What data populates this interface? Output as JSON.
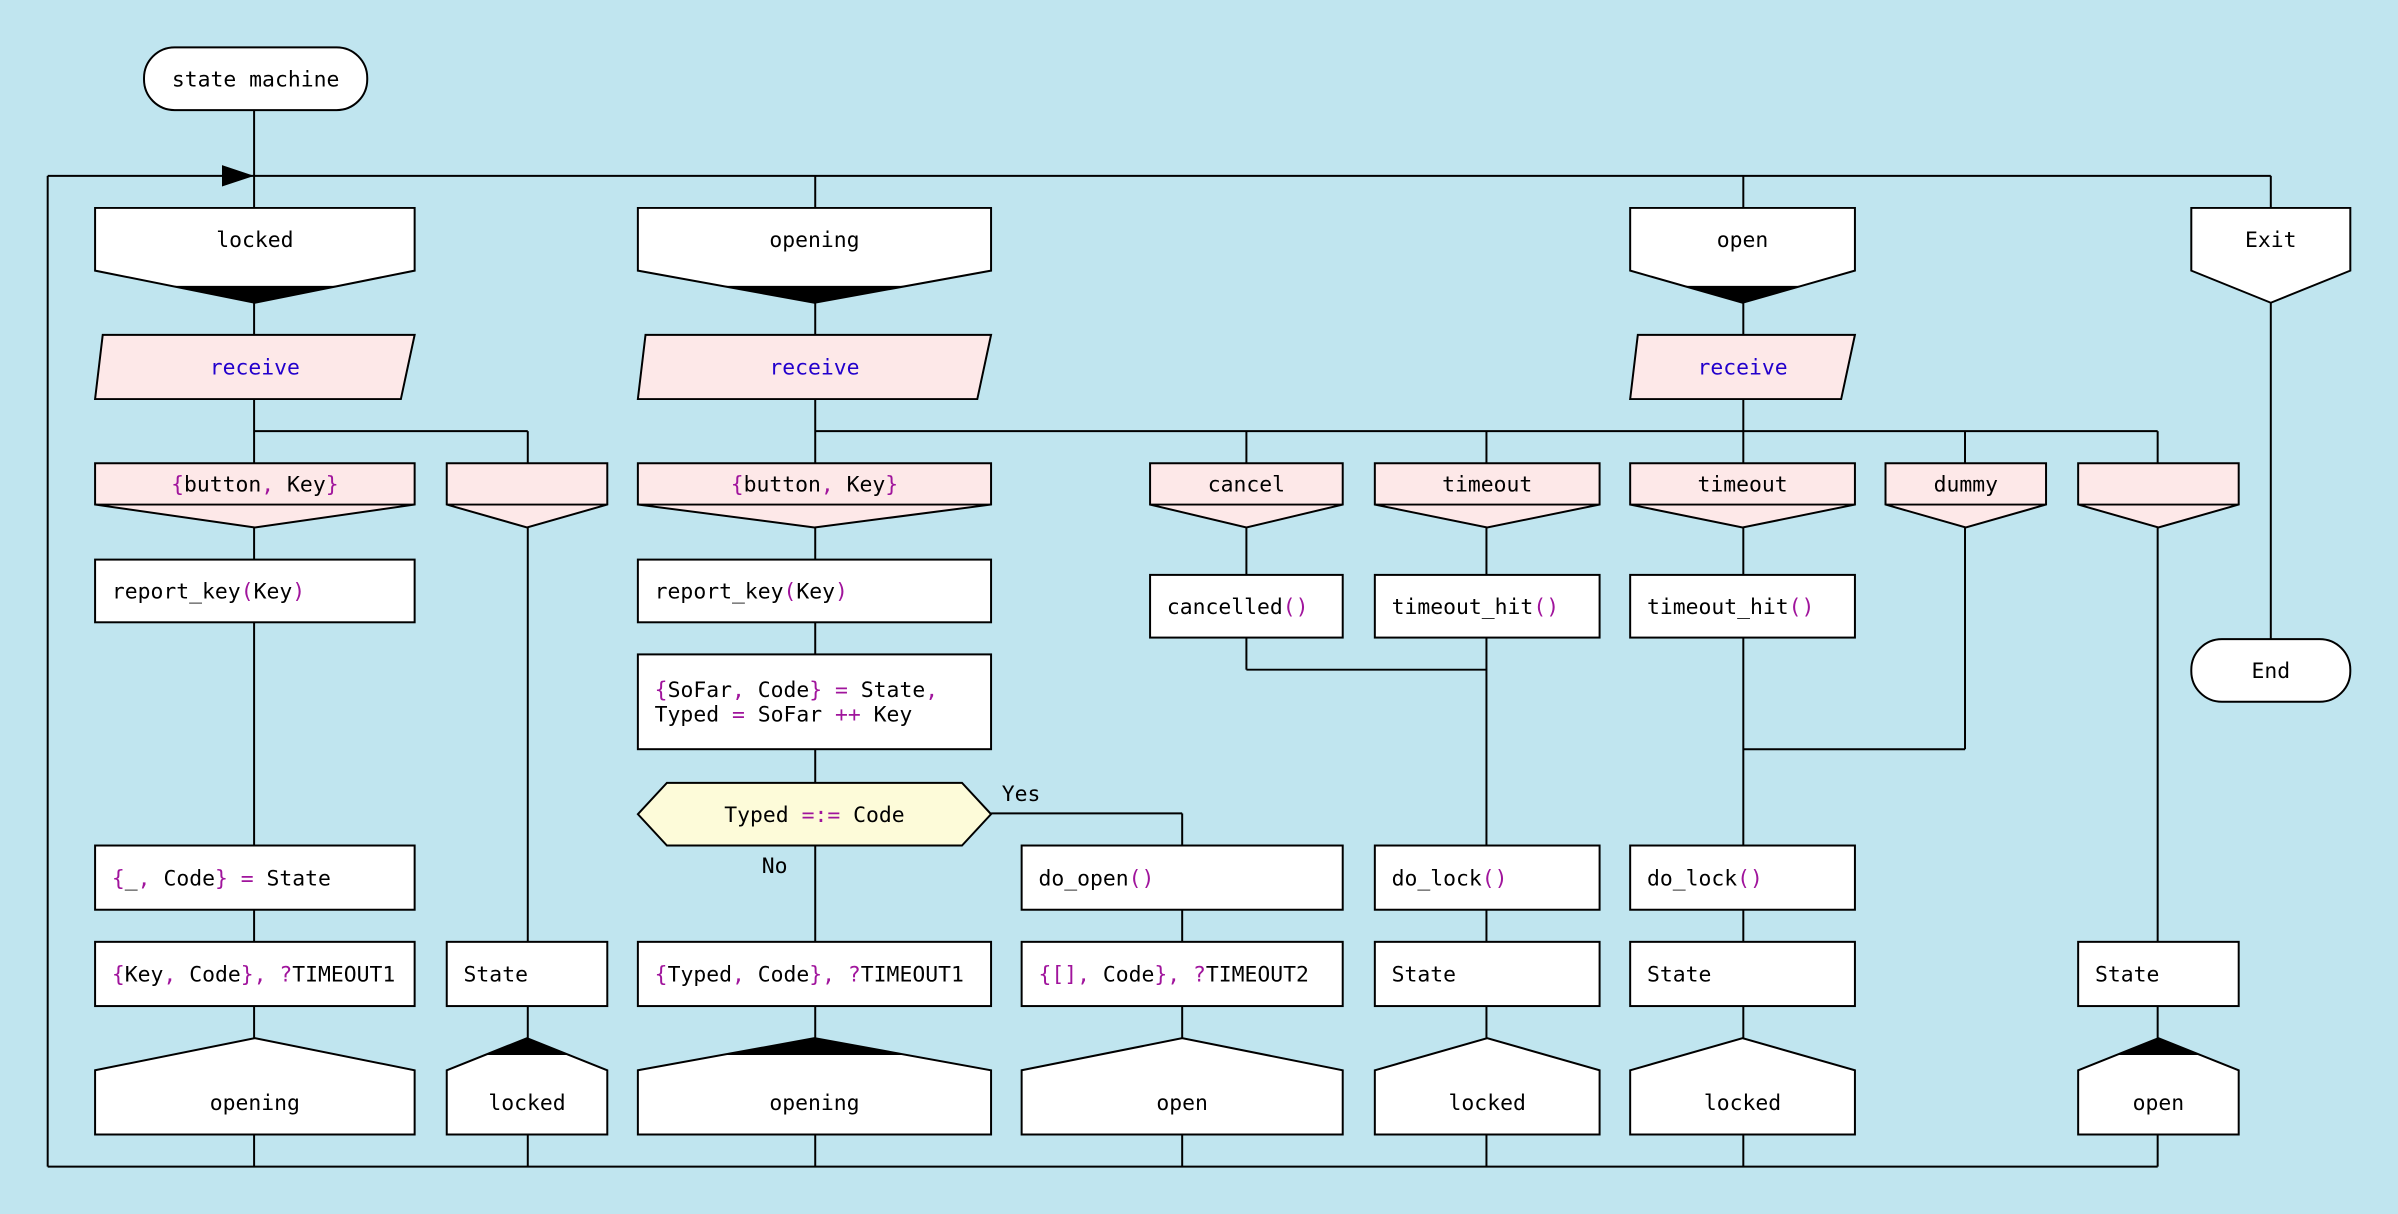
{
  "colors": {
    "background": "#c0e5ef",
    "box": "#ffffff",
    "receive_fill": "#fde8e8",
    "pattern_fill": "#fde8e8",
    "decision_fill": "#fdfbd9",
    "stroke": "#000000",
    "text": "#000000",
    "keyword": "#2200cc",
    "punct": "#a0149c"
  },
  "labels": {
    "yes": "Yes",
    "no": "No"
  },
  "nodes": [
    {
      "kind": "terminal",
      "lines": [
        [
          [
            "state machine",
            "t"
          ]
        ]
      ]
    },
    {
      "kind": "state",
      "filled": true,
      "lines": [
        [
          [
            "locked",
            "t"
          ]
        ]
      ]
    },
    {
      "kind": "state",
      "filled": true,
      "lines": [
        [
          [
            "opening",
            "t"
          ]
        ]
      ]
    },
    {
      "kind": "state",
      "filled": true,
      "lines": [
        [
          [
            "open",
            "t"
          ]
        ]
      ]
    },
    {
      "kind": "state",
      "filled": false,
      "lines": [
        [
          [
            "Exit",
            "t"
          ]
        ]
      ]
    },
    {
      "kind": "receive",
      "lines": [
        [
          [
            "receive",
            "k"
          ]
        ]
      ]
    },
    {
      "kind": "receive",
      "lines": [
        [
          [
            "receive",
            "k"
          ]
        ]
      ]
    },
    {
      "kind": "receive",
      "lines": [
        [
          [
            "receive",
            "k"
          ]
        ]
      ]
    },
    {
      "kind": "pattern",
      "lines": [
        [
          [
            "{",
            "p"
          ],
          [
            "button",
            "t"
          ],
          [
            ",",
            "p"
          ],
          [
            " Key",
            "t"
          ],
          [
            "}",
            "p"
          ]
        ]
      ]
    },
    {
      "kind": "pattern",
      "lines": []
    },
    {
      "kind": "pattern",
      "lines": [
        [
          [
            "{",
            "p"
          ],
          [
            "button",
            "t"
          ],
          [
            ",",
            "p"
          ],
          [
            " Key",
            "t"
          ],
          [
            "}",
            "p"
          ]
        ]
      ]
    },
    {
      "kind": "pattern",
      "lines": [
        [
          [
            "cancel",
            "t"
          ]
        ]
      ]
    },
    {
      "kind": "pattern",
      "lines": [
        [
          [
            "timeout",
            "t"
          ]
        ]
      ]
    },
    {
      "kind": "pattern",
      "lines": [
        [
          [
            "timeout",
            "t"
          ]
        ]
      ]
    },
    {
      "kind": "pattern",
      "lines": [
        [
          [
            "dummy",
            "t"
          ]
        ]
      ]
    },
    {
      "kind": "pattern",
      "lines": []
    },
    {
      "kind": "action",
      "lines": [
        [
          [
            "report_key",
            "t"
          ],
          [
            "(",
            "p"
          ],
          [
            "Key",
            "t"
          ],
          [
            ")",
            "p"
          ]
        ]
      ]
    },
    {
      "kind": "action",
      "lines": [
        [
          [
            "report_key",
            "t"
          ],
          [
            "(",
            "p"
          ],
          [
            "Key",
            "t"
          ],
          [
            ")",
            "p"
          ]
        ]
      ]
    },
    {
      "kind": "action",
      "lines": [
        [
          [
            "cancelled",
            "t"
          ],
          [
            "()",
            "p"
          ]
        ]
      ]
    },
    {
      "kind": "action",
      "lines": [
        [
          [
            "timeout_hit",
            "t"
          ],
          [
            "()",
            "p"
          ]
        ]
      ]
    },
    {
      "kind": "action",
      "lines": [
        [
          [
            "timeout_hit",
            "t"
          ],
          [
            "()",
            "p"
          ]
        ]
      ]
    },
    {
      "kind": "action",
      "lines": [
        [
          [
            "{",
            "p"
          ],
          [
            "SoFar",
            "t"
          ],
          [
            ",",
            "p"
          ],
          [
            " Code",
            "t"
          ],
          [
            "}",
            "p"
          ],
          [
            " = ",
            "p"
          ],
          [
            "State",
            "t"
          ],
          [
            ",",
            "p"
          ]
        ],
        [
          [
            "Typed",
            "t"
          ],
          [
            " = ",
            "p"
          ],
          [
            "SoFar ",
            "t"
          ],
          [
            "++",
            "p"
          ],
          [
            " Key",
            "t"
          ]
        ]
      ]
    },
    {
      "kind": "decision",
      "lines": [
        [
          [
            "Typed ",
            "t"
          ],
          [
            "=:=",
            "p"
          ],
          [
            " Code",
            "t"
          ]
        ]
      ]
    },
    {
      "kind": "action",
      "lines": [
        [
          [
            "{",
            "p"
          ],
          [
            "_",
            "t"
          ],
          [
            ",",
            "p"
          ],
          [
            " Code",
            "t"
          ],
          [
            "}",
            "p"
          ],
          [
            " = ",
            "p"
          ],
          [
            "State",
            "t"
          ]
        ]
      ]
    },
    {
      "kind": "action",
      "lines": [
        [
          [
            "do_open",
            "t"
          ],
          [
            "()",
            "p"
          ]
        ]
      ]
    },
    {
      "kind": "action",
      "lines": [
        [
          [
            "do_lock",
            "t"
          ],
          [
            "()",
            "p"
          ]
        ]
      ]
    },
    {
      "kind": "action",
      "lines": [
        [
          [
            "do_lock",
            "t"
          ],
          [
            "()",
            "p"
          ]
        ]
      ]
    },
    {
      "kind": "action",
      "lines": [
        [
          [
            "{",
            "p"
          ],
          [
            "Key",
            "t"
          ],
          [
            ",",
            "p"
          ],
          [
            " Code",
            "t"
          ],
          [
            "}",
            "p"
          ],
          [
            ", ?",
            "p"
          ],
          [
            "TIMEOUT1",
            "t"
          ]
        ]
      ]
    },
    {
      "kind": "action",
      "lines": [
        [
          [
            "State",
            "t"
          ]
        ]
      ]
    },
    {
      "kind": "action",
      "lines": [
        [
          [
            "{",
            "p"
          ],
          [
            "Typed",
            "t"
          ],
          [
            ",",
            "p"
          ],
          [
            " Code",
            "t"
          ],
          [
            "}",
            "p"
          ],
          [
            ", ?",
            "p"
          ],
          [
            "TIMEOUT1",
            "t"
          ]
        ]
      ]
    },
    {
      "kind": "action",
      "lines": [
        [
          [
            "{[]",
            "p"
          ],
          [
            ",",
            "p"
          ],
          [
            " Code",
            "t"
          ],
          [
            "}",
            "p"
          ],
          [
            ", ?",
            "p"
          ],
          [
            "TIMEOUT2",
            "t"
          ]
        ]
      ]
    },
    {
      "kind": "action",
      "lines": [
        [
          [
            "State",
            "t"
          ]
        ]
      ]
    },
    {
      "kind": "action",
      "lines": [
        [
          [
            "State",
            "t"
          ]
        ]
      ]
    },
    {
      "kind": "action",
      "lines": [
        [
          [
            "State",
            "t"
          ]
        ]
      ]
    },
    {
      "kind": "next",
      "filled": false,
      "lines": [
        [
          [
            "opening",
            "t"
          ]
        ]
      ]
    },
    {
      "kind": "next",
      "filled": true,
      "lines": [
        [
          [
            "locked",
            "t"
          ]
        ]
      ]
    },
    {
      "kind": "next",
      "filled": true,
      "lines": [
        [
          [
            "opening",
            "t"
          ]
        ]
      ]
    },
    {
      "kind": "next",
      "filled": false,
      "lines": [
        [
          [
            "open",
            "t"
          ]
        ]
      ]
    },
    {
      "kind": "next",
      "filled": false,
      "lines": [
        [
          [
            "locked",
            "t"
          ]
        ]
      ]
    },
    {
      "kind": "next",
      "filled": false,
      "lines": [
        [
          [
            "locked",
            "t"
          ]
        ]
      ]
    },
    {
      "kind": "next",
      "filled": true,
      "lines": [
        [
          [
            "open",
            "t"
          ]
        ]
      ]
    },
    {
      "kind": "terminal",
      "lines": [
        [
          [
            "End",
            "t"
          ]
        ]
      ]
    }
  ]
}
